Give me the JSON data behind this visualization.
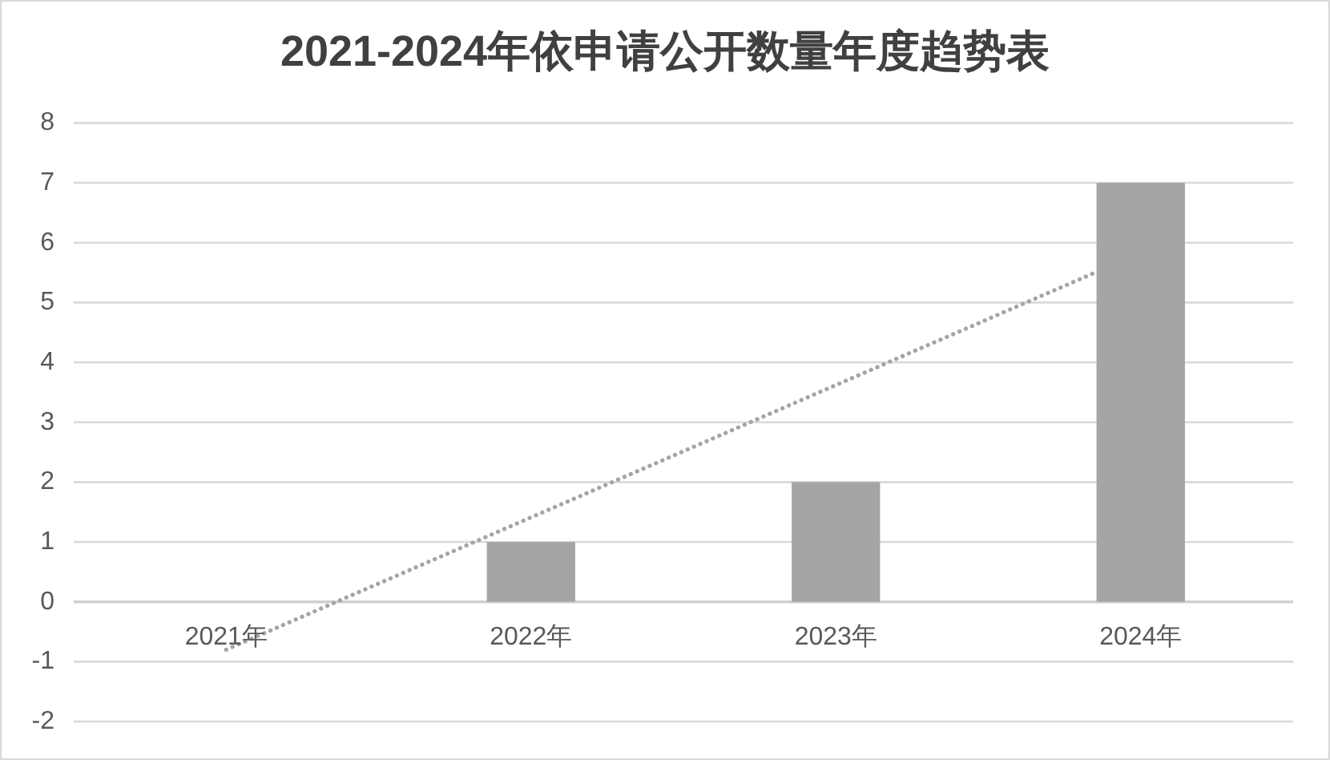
{
  "chart_data": {
    "type": "bar",
    "title": "2021-2024年依申请公开数量年度趋势表",
    "x": [
      2021,
      2022,
      2023,
      2024
    ],
    "series": [
      {
        "color": "#a5a5a5",
        "values": [
          0,
          1,
          2,
          7
        ]
      },
      {
        "type": "line",
        "color": "#a5a5a5",
        "x": [
          2021,
          2023.85
        ],
        "values": [
          -0.8,
          5.5
        ],
        "line_style": "dotted"
      }
    ],
    "xlim": [
      2020.5,
      2024.5
    ],
    "xticks": [
      {
        "value": 2021,
        "label": "2021年"
      },
      {
        "value": 2022,
        "label": "2022年"
      },
      {
        "value": 2023,
        "label": "2023年"
      },
      {
        "value": 2024,
        "label": "2024年"
      }
    ],
    "ylim": [
      -2,
      8
    ],
    "yticks": [
      -2,
      -1,
      0,
      1,
      2,
      3,
      4,
      5,
      6,
      7,
      8
    ],
    "grid": "y"
  }
}
